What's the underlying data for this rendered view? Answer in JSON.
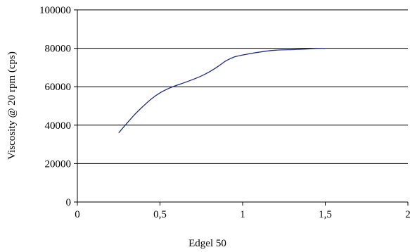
{
  "chart_data": {
    "type": "line",
    "title": "",
    "xlabel": "Edgel 50",
    "ylabel": "Viscosity @ 20 rpm (cps)",
    "xlim": [
      0,
      2
    ],
    "ylim": [
      0,
      100000
    ],
    "x_ticks": [
      0,
      0.5,
      1,
      1.5,
      2
    ],
    "x_tick_labels": [
      "0",
      "0,5",
      "1",
      "1,5",
      "2"
    ],
    "y_ticks": [
      0,
      20000,
      40000,
      60000,
      80000,
      100000
    ],
    "y_tick_labels": [
      "0",
      "20000",
      "40000",
      "60000",
      "80000",
      "100000"
    ],
    "grid": "horizontal",
    "legend": "none",
    "series": [
      {
        "color": "#1f2a8a",
        "x": [
          0.25,
          0.3,
          0.35,
          0.4,
          0.45,
          0.5,
          0.55,
          0.6,
          0.65,
          0.7,
          0.75,
          0.8,
          0.85,
          0.9,
          0.95,
          1.0,
          1.05,
          1.1,
          1.15,
          1.2,
          1.25,
          1.3,
          1.35,
          1.4,
          1.45,
          1.5
        ],
        "y": [
          36000,
          41000,
          45800,
          50000,
          53800,
          56800,
          59000,
          60700,
          62200,
          63800,
          65600,
          67800,
          70500,
          73500,
          75500,
          76500,
          77300,
          78000,
          78600,
          79000,
          79200,
          79300,
          79500,
          79700,
          79900,
          80000
        ]
      }
    ]
  }
}
